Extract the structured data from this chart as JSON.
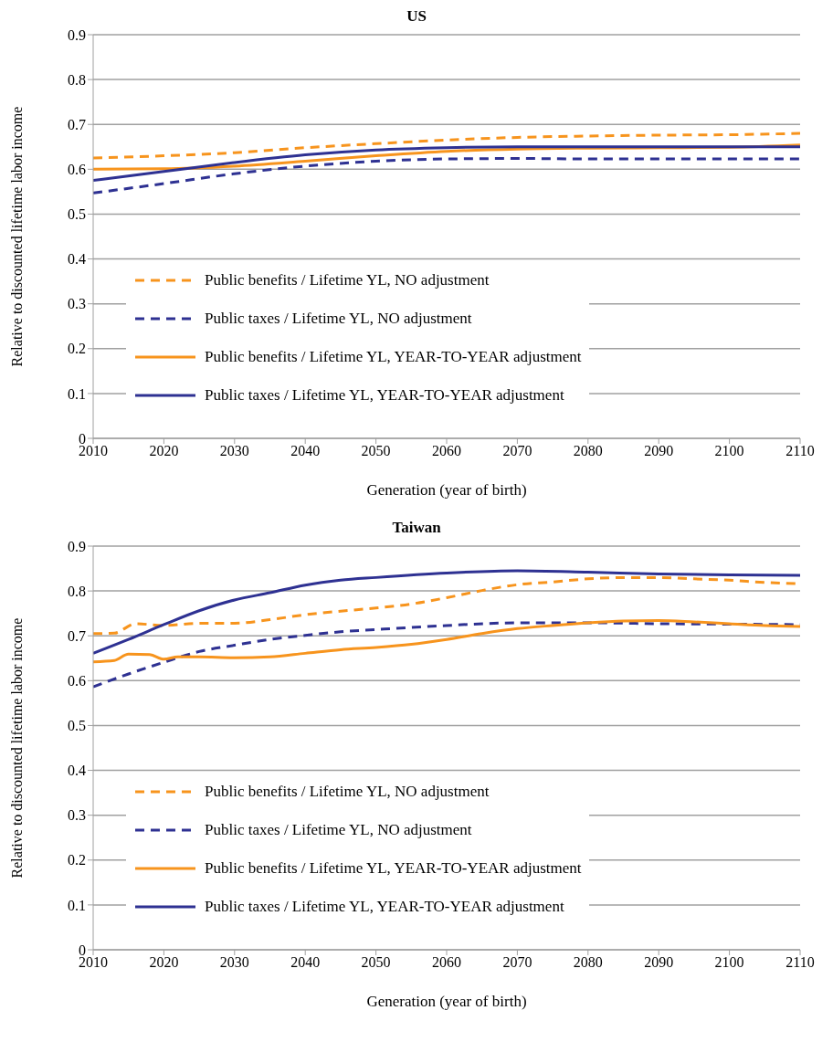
{
  "chart_data": [
    {
      "type": "line",
      "title": "US",
      "xlabel": "Generation (year of birth)",
      "ylabel": "Relative to discounted lifetime labor income",
      "xlim": [
        2010,
        2110
      ],
      "xticks": [
        2010,
        2020,
        2030,
        2040,
        2050,
        2060,
        2070,
        2080,
        2090,
        2100,
        2110
      ],
      "ylim": [
        0,
        0.9
      ],
      "yticks": [
        0,
        0.1,
        0.2,
        0.3,
        0.4,
        0.5,
        0.6,
        0.7,
        0.8,
        0.9
      ],
      "grid": "y",
      "legend": "bottom left",
      "marker": "none",
      "series": [
        {
          "name": "Public benefits / Lifetime YL, NO adjustment",
          "color": "#f7941d",
          "line_style": "dashed",
          "x": [
            2010,
            2020,
            2030,
            2040,
            2050,
            2060,
            2070,
            2080,
            2090,
            2100,
            2110
          ],
          "values": [
            0.625,
            0.63,
            0.637,
            0.648,
            0.657,
            0.665,
            0.671,
            0.674,
            0.676,
            0.677,
            0.68
          ]
        },
        {
          "name": "Public taxes / Lifetime YL, NO adjustment",
          "color": "#2e3192",
          "line_style": "dashed",
          "x": [
            2010,
            2020,
            2030,
            2040,
            2050,
            2060,
            2070,
            2080,
            2090,
            2100,
            2110
          ],
          "values": [
            0.547,
            0.568,
            0.59,
            0.607,
            0.618,
            0.623,
            0.624,
            0.623,
            0.623,
            0.623,
            0.623
          ]
        },
        {
          "name": "Public benefits / Lifetime YL, YEAR-TO-YEAR adjustment",
          "color": "#f7941d",
          "line_style": "solid",
          "x": [
            2010,
            2020,
            2030,
            2040,
            2050,
            2060,
            2070,
            2080,
            2090,
            2100,
            2110
          ],
          "values": [
            0.6,
            0.601,
            0.607,
            0.618,
            0.63,
            0.64,
            0.645,
            0.647,
            0.648,
            0.649,
            0.654
          ]
        },
        {
          "name": "Public taxes / Lifetime YL, YEAR-TO-YEAR adjustment",
          "color": "#2e3192",
          "line_style": "solid",
          "x": [
            2010,
            2020,
            2030,
            2040,
            2050,
            2060,
            2070,
            2080,
            2090,
            2100,
            2110
          ],
          "values": [
            0.575,
            0.595,
            0.615,
            0.632,
            0.643,
            0.648,
            0.65,
            0.65,
            0.65,
            0.65,
            0.65
          ]
        }
      ]
    },
    {
      "type": "line",
      "title": "Taiwan",
      "xlabel": "Generation (year of birth)",
      "ylabel": "Relative to discounted lifetime labor income",
      "xlim": [
        2010,
        2110
      ],
      "xticks": [
        2010,
        2020,
        2030,
        2040,
        2050,
        2060,
        2070,
        2080,
        2090,
        2100,
        2110
      ],
      "ylim": [
        0,
        0.9
      ],
      "yticks": [
        0,
        0.1,
        0.2,
        0.3,
        0.4,
        0.5,
        0.6,
        0.7,
        0.8,
        0.9
      ],
      "grid": "y",
      "legend": "bottom left",
      "marker": "none",
      "series": [
        {
          "name": "Public benefits / Lifetime YL, NO adjustment",
          "color": "#f7941d",
          "line_style": "dashed",
          "x": [
            2010,
            2013,
            2016,
            2020,
            2025,
            2030,
            2035,
            2040,
            2045,
            2050,
            2055,
            2060,
            2065,
            2070,
            2075,
            2080,
            2085,
            2090,
            2095,
            2100,
            2105,
            2110
          ],
          "values": [
            0.705,
            0.706,
            0.727,
            0.723,
            0.728,
            0.728,
            0.736,
            0.747,
            0.755,
            0.762,
            0.771,
            0.785,
            0.801,
            0.814,
            0.82,
            0.827,
            0.83,
            0.83,
            0.827,
            0.824,
            0.819,
            0.816
          ]
        },
        {
          "name": "Public taxes / Lifetime YL, NO adjustment",
          "color": "#2e3192",
          "line_style": "dashed",
          "x": [
            2010,
            2015,
            2020,
            2025,
            2030,
            2035,
            2040,
            2045,
            2050,
            2060,
            2070,
            2080,
            2090,
            2100,
            2110
          ],
          "values": [
            0.586,
            0.615,
            0.641,
            0.665,
            0.679,
            0.692,
            0.701,
            0.709,
            0.714,
            0.723,
            0.729,
            0.729,
            0.727,
            0.726,
            0.725
          ]
        },
        {
          "name": "Public benefits / Lifetime YL, YEAR-TO-YEAR adjustment",
          "color": "#f7941d",
          "line_style": "solid",
          "x": [
            2010,
            2013,
            2015,
            2018,
            2020,
            2022,
            2025,
            2030,
            2035,
            2040,
            2045,
            2050,
            2055,
            2060,
            2065,
            2070,
            2075,
            2080,
            2085,
            2090,
            2095,
            2100,
            2105,
            2110
          ],
          "values": [
            0.642,
            0.645,
            0.659,
            0.658,
            0.648,
            0.653,
            0.653,
            0.651,
            0.653,
            0.661,
            0.669,
            0.674,
            0.681,
            0.692,
            0.705,
            0.716,
            0.723,
            0.729,
            0.733,
            0.734,
            0.731,
            0.727,
            0.723,
            0.721
          ]
        },
        {
          "name": "Public taxes / Lifetime YL, YEAR-TO-YEAR adjustment",
          "color": "#2e3192",
          "line_style": "solid",
          "x": [
            2010,
            2015,
            2020,
            2025,
            2030,
            2035,
            2040,
            2045,
            2050,
            2060,
            2070,
            2080,
            2090,
            2100,
            2110
          ],
          "values": [
            0.661,
            0.692,
            0.725,
            0.756,
            0.78,
            0.796,
            0.813,
            0.824,
            0.83,
            0.84,
            0.845,
            0.842,
            0.838,
            0.836,
            0.835
          ]
        }
      ]
    }
  ]
}
